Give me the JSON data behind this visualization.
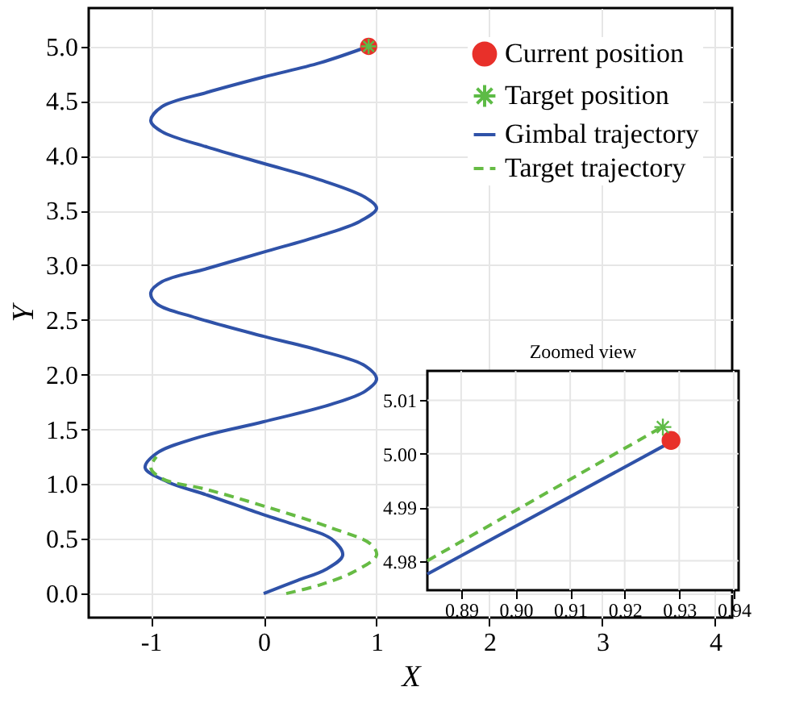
{
  "chart_data": [
    {
      "type": "line",
      "xlabel": "X",
      "ylabel": "Y",
      "xlim": [
        -1.55,
        4.15
      ],
      "ylim": [
        -0.22,
        5.35
      ],
      "xticks": [
        -1,
        0,
        1,
        2,
        3,
        4
      ],
      "yticks": [
        {
          "value": 0,
          "label": "0.0"
        },
        0.5,
        {
          "value": 1,
          "label": "1.0"
        },
        1.5,
        {
          "value": 2,
          "label": "2.0"
        },
        2.5,
        {
          "value": 3,
          "label": "3.0"
        },
        3.5,
        {
          "value": 4,
          "label": "4.0"
        },
        4.5,
        {
          "value": 5,
          "label": "5.0"
        }
      ],
      "grid": true,
      "legend": "top right",
      "series": [
        {
          "name": "Current position",
          "type": "scatter",
          "marker": "circle",
          "color": "#e8302a",
          "x": [
            0.93
          ],
          "values": [
            5.0
          ]
        },
        {
          "name": "Target position",
          "type": "scatter",
          "marker": "cross",
          "color": "#5dbb46",
          "x": [
            0.93
          ],
          "values": [
            5.0
          ]
        },
        {
          "name": "Gimbal trajectory",
          "line_style": "solid",
          "color": "#2f52a8",
          "x": [
            0,
            0.3,
            0.55,
            0.7,
            0.6,
            0.3,
            0,
            -0.5,
            -0.85,
            -1.05,
            -0.95,
            -0.6,
            0,
            0.6,
            0.9,
            1,
            0.9,
            0.5,
            0,
            -0.6,
            -0.95,
            -1,
            -0.9,
            -0.5,
            0,
            0.5,
            0.85,
            1,
            0.9,
            0.5,
            0,
            -0.5,
            -0.9,
            -1,
            -0.9,
            -0.5,
            0,
            0.5,
            0.93
          ],
          "values": [
            0,
            0.12,
            0.22,
            0.35,
            0.5,
            0.62,
            0.72,
            0.9,
            1.02,
            1.15,
            1.28,
            1.42,
            1.57,
            1.73,
            1.85,
            1.96,
            2.08,
            2.22,
            2.35,
            2.52,
            2.65,
            2.75,
            2.85,
            2.97,
            3.12,
            3.27,
            3.4,
            3.52,
            3.62,
            3.78,
            3.93,
            4.08,
            4.22,
            4.32,
            4.45,
            4.58,
            4.72,
            4.85,
            5.0
          ]
        },
        {
          "name": "Target trajectory",
          "line_style": "dashed",
          "color": "#66bb44",
          "x": [
            0.2,
            0.5,
            0.8,
            1,
            0.95,
            0.6,
            0,
            -0.5,
            -0.9,
            -1,
            -0.95
          ],
          "values": [
            0,
            0.08,
            0.2,
            0.35,
            0.45,
            0.6,
            0.8,
            0.95,
            1.05,
            1.15,
            1.25
          ]
        }
      ]
    },
    {
      "type": "line",
      "title": "Zoomed view",
      "xlim": [
        0.8838,
        0.9409
      ],
      "ylim": [
        4.9745,
        5.0155
      ],
      "xticks": [
        0.89,
        {
          "value": 0.9,
          "label": "0.90"
        },
        0.91,
        0.92,
        0.93,
        0.94
      ],
      "yticks": [
        4.98,
        4.99,
        {
          "value": 5,
          "label": "5.00"
        },
        5.01
      ],
      "grid": true,
      "series": [
        {
          "line_style": "solid",
          "color": "#2f52a8",
          "x": [
            0.8838,
            0.9272
          ],
          "values": [
            4.9775,
            5.0015
          ]
        },
        {
          "line_style": "dashed",
          "color": "#66bb44",
          "x": [
            0.8838,
            0.9265
          ],
          "values": [
            4.98,
            5.0048
          ]
        },
        {
          "type": "scatter",
          "marker": "circle",
          "color": "#e8302a",
          "x": [
            0.9285
          ],
          "values": [
            5.0025
          ]
        },
        {
          "type": "scatter",
          "marker": "cross",
          "color": "#5dbb46",
          "x": [
            0.927
          ],
          "values": [
            5.005
          ]
        }
      ]
    }
  ]
}
